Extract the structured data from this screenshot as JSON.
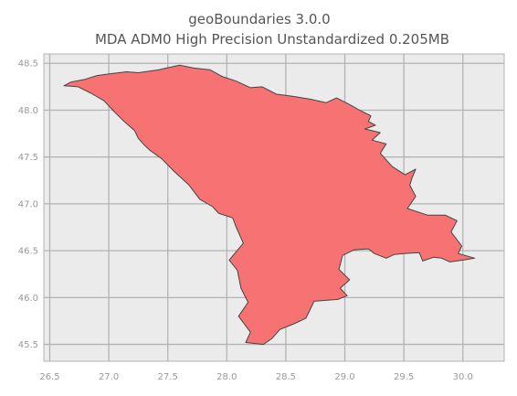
{
  "chart_data": {
    "type": "map",
    "title_line1": "geoBoundaries 3.0.0",
    "title_line2": "MDA ADM0 High Precision Unstandardized 0.205MB",
    "xlim": [
      26.45,
      30.35
    ],
    "ylim": [
      45.32,
      48.6
    ],
    "x_ticks": [
      "26.5",
      "27.0",
      "27.5",
      "28.0",
      "28.5",
      "29.0",
      "29.5",
      "30.0"
    ],
    "y_ticks": [
      "45.5",
      "46.0",
      "46.5",
      "47.0",
      "47.5",
      "48.0",
      "48.5"
    ],
    "grid": true,
    "fill_color": "#f77272",
    "edge_color": "#444444",
    "background_color": "#ebebeb",
    "grid_color": "#b3b3b3",
    "outline_lonlat": [
      [
        26.62,
        48.26
      ],
      [
        26.68,
        48.3
      ],
      [
        26.8,
        48.33
      ],
      [
        26.9,
        48.37
      ],
      [
        27.02,
        48.39
      ],
      [
        27.15,
        48.41
      ],
      [
        27.25,
        48.4
      ],
      [
        27.42,
        48.43
      ],
      [
        27.6,
        48.48
      ],
      [
        27.72,
        48.45
      ],
      [
        27.86,
        48.43
      ],
      [
        27.96,
        48.36
      ],
      [
        28.08,
        48.31
      ],
      [
        28.2,
        48.24
      ],
      [
        28.3,
        48.25
      ],
      [
        28.42,
        48.17
      ],
      [
        28.55,
        48.15
      ],
      [
        28.7,
        48.12
      ],
      [
        28.84,
        48.08
      ],
      [
        28.93,
        48.13
      ],
      [
        29.04,
        48.06
      ],
      [
        29.14,
        47.99
      ],
      [
        29.22,
        47.94
      ],
      [
        29.2,
        47.88
      ],
      [
        29.26,
        47.84
      ],
      [
        29.17,
        47.8
      ],
      [
        29.3,
        47.76
      ],
      [
        29.23,
        47.68
      ],
      [
        29.35,
        47.64
      ],
      [
        29.3,
        47.54
      ],
      [
        29.4,
        47.4
      ],
      [
        29.51,
        47.31
      ],
      [
        29.6,
        47.37
      ],
      [
        29.57,
        47.28
      ],
      [
        29.55,
        47.2
      ],
      [
        29.6,
        47.08
      ],
      [
        29.53,
        46.95
      ],
      [
        29.7,
        46.88
      ],
      [
        29.85,
        46.88
      ],
      [
        29.95,
        46.82
      ],
      [
        29.9,
        46.7
      ],
      [
        29.99,
        46.55
      ],
      [
        29.96,
        46.47
      ],
      [
        30.1,
        46.42
      ],
      [
        30.0,
        46.4
      ],
      [
        29.89,
        46.38
      ],
      [
        29.82,
        46.42
      ],
      [
        29.75,
        46.43
      ],
      [
        29.66,
        46.39
      ],
      [
        29.63,
        46.48
      ],
      [
        29.5,
        46.47
      ],
      [
        29.42,
        46.46
      ],
      [
        29.35,
        46.42
      ],
      [
        29.25,
        46.47
      ],
      [
        29.2,
        46.52
      ],
      [
        29.08,
        46.51
      ],
      [
        28.98,
        46.45
      ],
      [
        28.95,
        46.3
      ],
      [
        29.04,
        46.19
      ],
      [
        28.96,
        46.1
      ],
      [
        29.02,
        46.02
      ],
      [
        28.94,
        45.98
      ],
      [
        28.74,
        45.96
      ],
      [
        28.67,
        45.78
      ],
      [
        28.57,
        45.72
      ],
      [
        28.45,
        45.66
      ],
      [
        28.38,
        45.56
      ],
      [
        28.31,
        45.5
      ],
      [
        28.16,
        45.52
      ],
      [
        28.2,
        45.63
      ],
      [
        28.1,
        45.8
      ],
      [
        28.18,
        45.95
      ],
      [
        28.12,
        46.1
      ],
      [
        28.09,
        46.29
      ],
      [
        28.02,
        46.4
      ],
      [
        28.14,
        46.58
      ],
      [
        28.08,
        46.75
      ],
      [
        28.05,
        46.85
      ],
      [
        27.93,
        46.9
      ],
      [
        27.88,
        46.97
      ],
      [
        27.77,
        47.05
      ],
      [
        27.68,
        47.2
      ],
      [
        27.55,
        47.35
      ],
      [
        27.45,
        47.48
      ],
      [
        27.35,
        47.57
      ],
      [
        27.3,
        47.63
      ],
      [
        27.25,
        47.7
      ],
      [
        27.22,
        47.78
      ],
      [
        27.13,
        47.88
      ],
      [
        27.05,
        47.98
      ],
      [
        26.96,
        48.1
      ],
      [
        26.85,
        48.18
      ],
      [
        26.74,
        48.25
      ],
      [
        26.62,
        48.26
      ]
    ]
  }
}
